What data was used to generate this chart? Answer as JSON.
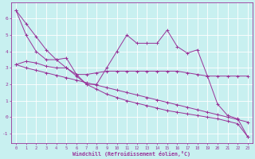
{
  "xlabel": "Windchill (Refroidissement éolien,°C)",
  "bg_color": "#c8f0f0",
  "line_color": "#993399",
  "grid_color": "#ffffff",
  "xlim": [
    -0.5,
    23.5
  ],
  "ylim": [
    -1.6,
    7.0
  ],
  "yticks": [
    -1,
    0,
    1,
    2,
    3,
    4,
    5,
    6
  ],
  "xticks": [
    0,
    1,
    2,
    3,
    4,
    5,
    6,
    7,
    8,
    9,
    10,
    11,
    12,
    13,
    14,
    15,
    16,
    17,
    18,
    19,
    20,
    21,
    22,
    23
  ],
  "series": [
    [
      6.5,
      5.0,
      4.0,
      3.5,
      3.5,
      3.6,
      2.6,
      2.0,
      2.0,
      3.0,
      4.0,
      5.0,
      4.5,
      4.5,
      4.5,
      5.3,
      4.3,
      3.9,
      4.1,
      2.5,
      0.8,
      0.1,
      -0.1,
      -1.2
    ],
    [
      3.2,
      3.4,
      3.3,
      3.1,
      3.0,
      3.0,
      2.6,
      2.6,
      2.7,
      2.8,
      2.8,
      2.8,
      2.8,
      2.8,
      2.8,
      2.8,
      2.8,
      2.7,
      2.6,
      2.5,
      2.5,
      2.5,
      2.5,
      2.5
    ],
    [
      3.2,
      3.0,
      2.85,
      2.7,
      2.55,
      2.4,
      2.25,
      2.1,
      1.95,
      1.8,
      1.65,
      1.5,
      1.35,
      1.2,
      1.05,
      0.9,
      0.75,
      0.6,
      0.45,
      0.3,
      0.15,
      0.0,
      -0.15,
      -0.3
    ],
    [
      6.5,
      5.7,
      4.9,
      4.1,
      3.5,
      3.0,
      2.5,
      2.0,
      1.7,
      1.4,
      1.2,
      1.0,
      0.85,
      0.7,
      0.55,
      0.4,
      0.3,
      0.2,
      0.1,
      0.0,
      -0.1,
      -0.25,
      -0.4,
      -1.2
    ]
  ]
}
